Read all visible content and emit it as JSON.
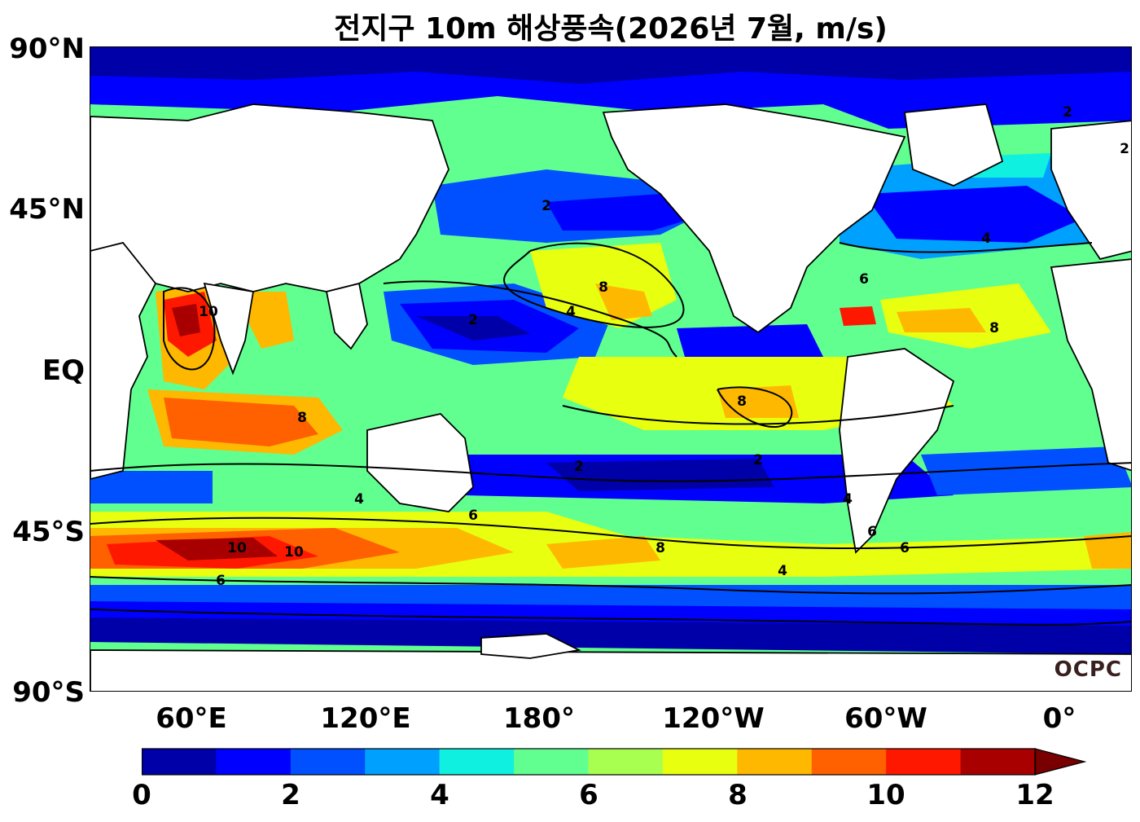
{
  "title": "전지구 10m 해상풍속(2026년 7월, m/s)",
  "logo": "OCPC",
  "lat_labels": [
    "90°N",
    "45°N",
    "EQ",
    "45°S",
    "90°S"
  ],
  "lon_labels": [
    "60°E",
    "120°E",
    "180°",
    "120°W",
    "60°W",
    "0°"
  ],
  "colorbar": {
    "unit": "m/s",
    "min": 0,
    "max": 12,
    "step": 1,
    "extend": "max",
    "tick_labels": [
      "0",
      "2",
      "4",
      "6",
      "8",
      "10",
      "12"
    ],
    "colors": [
      "#0000a8",
      "#0000ff",
      "#0050ff",
      "#00a0ff",
      "#10f0e0",
      "#60ff90",
      "#a8ff50",
      "#e8ff10",
      "#ffb800",
      "#ff6000",
      "#ff1800",
      "#a80000",
      "#780000"
    ]
  },
  "contour_levels": [
    2,
    4,
    6,
    8,
    10
  ],
  "contour_labels": [
    "2",
    "4",
    "6",
    "8",
    "10"
  ],
  "land_color": "#ffffff"
}
